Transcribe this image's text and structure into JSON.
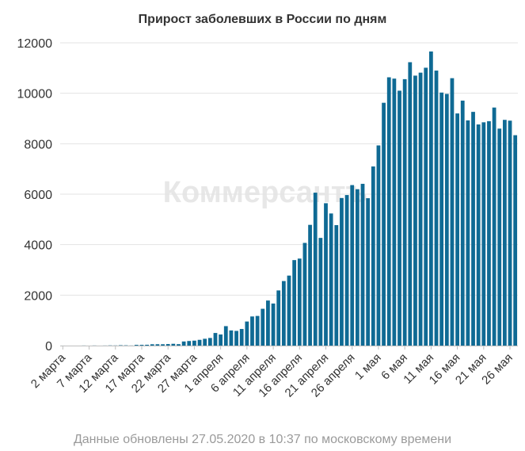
{
  "title": "Прирост заболевших в России по дням",
  "footer": "Данные обновлены 27.05.2020 в 10:37 по московскому времени",
  "watermark": "Коммерсантъ",
  "colors": {
    "bar": "#0f6a94",
    "grid": "#e3e3e3",
    "axis": "#bfbfbf"
  },
  "chart_data": {
    "type": "bar",
    "title": "Прирост заболевших в России по дням",
    "xlabel": "",
    "ylabel": "",
    "ylim": [
      0,
      12000
    ],
    "yticks": [
      0,
      2000,
      4000,
      6000,
      8000,
      10000,
      12000
    ],
    "grid": true,
    "legend": "none",
    "x_tick_labels": [
      {
        "index": 0,
        "label": "2 марта"
      },
      {
        "index": 5,
        "label": "7 марта"
      },
      {
        "index": 10,
        "label": "12 марта"
      },
      {
        "index": 15,
        "label": "17 марта"
      },
      {
        "index": 20,
        "label": "22 марта"
      },
      {
        "index": 25,
        "label": "27 марта"
      },
      {
        "index": 30,
        "label": "1 апреля"
      },
      {
        "index": 35,
        "label": "6 апреля"
      },
      {
        "index": 40,
        "label": "11 апреля"
      },
      {
        "index": 45,
        "label": "16 апреля"
      },
      {
        "index": 50,
        "label": "21 апреля"
      },
      {
        "index": 55,
        "label": "26 апреля"
      },
      {
        "index": 60,
        "label": "1 мая"
      },
      {
        "index": 65,
        "label": "6 мая"
      },
      {
        "index": 70,
        "label": "11 мая"
      },
      {
        "index": 75,
        "label": "16 мая"
      },
      {
        "index": 80,
        "label": "21 мая"
      },
      {
        "index": 85,
        "label": "26 мая"
      }
    ],
    "categories": [
      "2 марта",
      "3 марта",
      "4 марта",
      "5 марта",
      "6 марта",
      "7 марта",
      "8 марта",
      "9 марта",
      "10 марта",
      "11 марта",
      "12 марта",
      "13 марта",
      "14 марта",
      "15 марта",
      "16 марта",
      "17 марта",
      "18 марта",
      "19 марта",
      "20 марта",
      "21 марта",
      "22 марта",
      "23 марта",
      "24 марта",
      "25 марта",
      "26 марта",
      "27 марта",
      "28 марта",
      "29 марта",
      "30 марта",
      "31 марта",
      "1 апреля",
      "2 апреля",
      "3 апреля",
      "4 апреля",
      "5 апреля",
      "6 апреля",
      "7 апреля",
      "8 апреля",
      "9 апреля",
      "10 апреля",
      "11 апреля",
      "12 апреля",
      "13 апреля",
      "14 апреля",
      "15 апреля",
      "16 апреля",
      "17 апреля",
      "18 апреля",
      "19 апреля",
      "20 апреля",
      "21 апреля",
      "22 апреля",
      "23 апреля",
      "24 апреля",
      "25 апреля",
      "26 апреля",
      "27 апреля",
      "28 апреля",
      "29 апреля",
      "30 апреля",
      "1 мая",
      "2 мая",
      "3 мая",
      "4 мая",
      "5 мая",
      "6 мая",
      "7 мая",
      "8 мая",
      "9 мая",
      "10 мая",
      "11 мая",
      "12 мая",
      "13 мая",
      "14 мая",
      "15 мая",
      "16 мая",
      "17 мая",
      "18 мая",
      "19 мая",
      "20 мая",
      "21 мая",
      "22 мая",
      "23 мая",
      "24 мая",
      "25 мая",
      "26 мая",
      "27 мая"
    ],
    "values": [
      1,
      0,
      0,
      0,
      3,
      0,
      4,
      0,
      3,
      8,
      6,
      14,
      11,
      4,
      29,
      30,
      33,
      52,
      54,
      53,
      61,
      71,
      57,
      163,
      182,
      196,
      228,
      270,
      302,
      500,
      440,
      771,
      601,
      582,
      658,
      954,
      1154,
      1175,
      1459,
      1786,
      1667,
      2186,
      2558,
      2774,
      3388,
      3448,
      4070,
      4785,
      6060,
      4268,
      5642,
      5236,
      4774,
      5849,
      5966,
      6361,
      6198,
      6411,
      5841,
      7099,
      7933,
      9623,
      10633,
      10581,
      10102,
      10559,
      11231,
      10699,
      10817,
      11012,
      11656,
      10899,
      10028,
      9974,
      10598,
      9200,
      9709,
      8926,
      9263,
      8764,
      8849,
      8894,
      9434,
      8599,
      8946,
      8915,
      8338
    ]
  }
}
